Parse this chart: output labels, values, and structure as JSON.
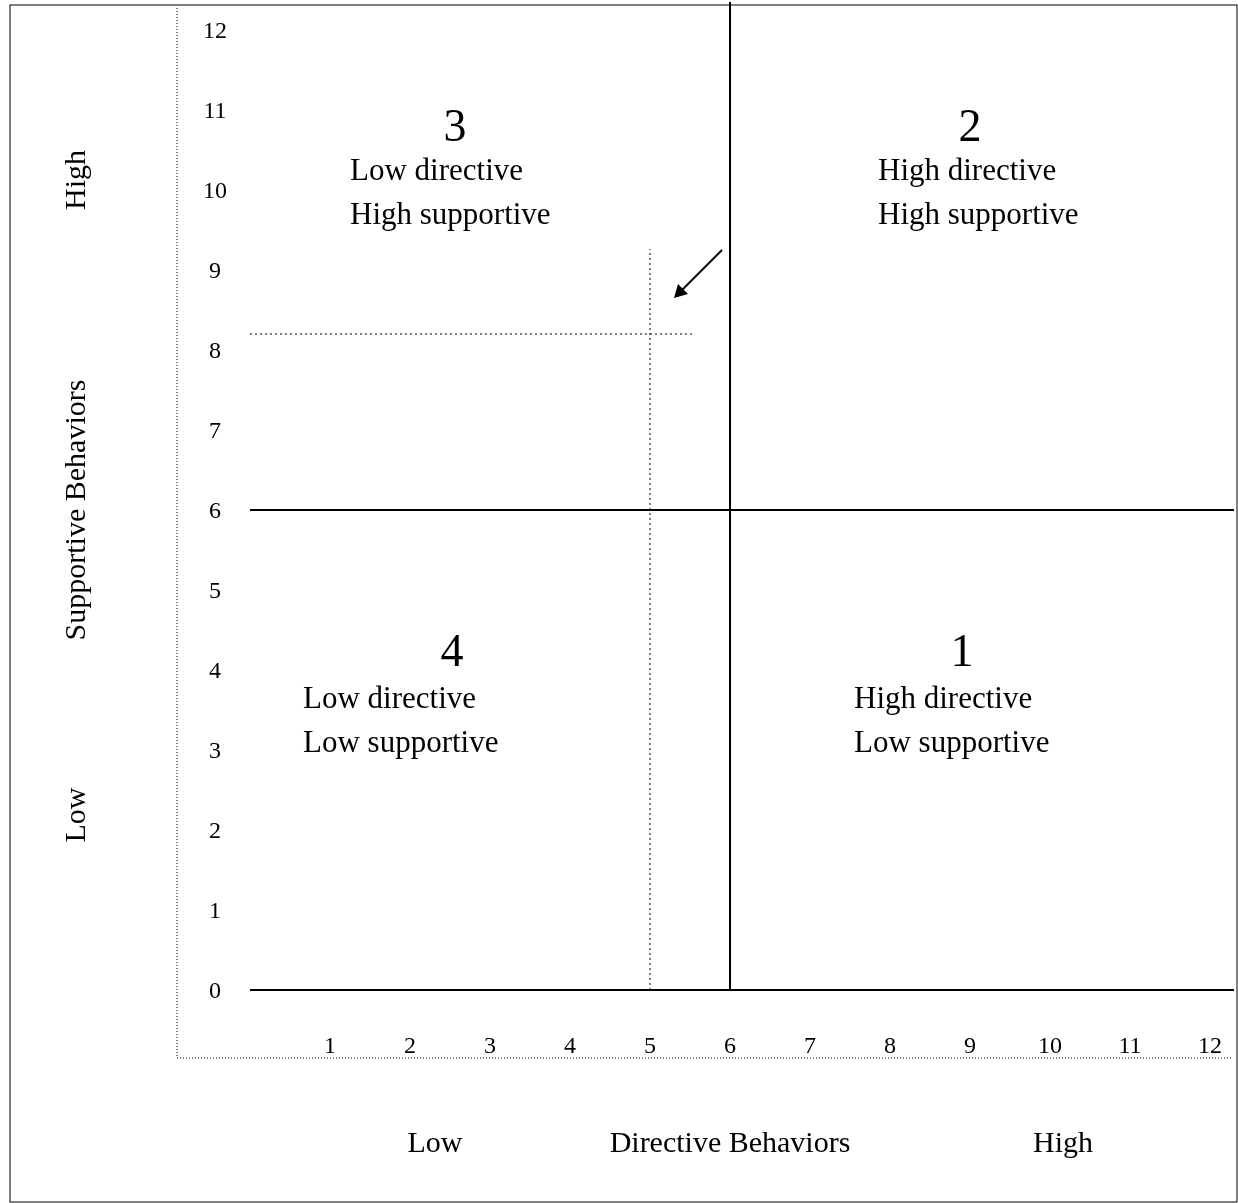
{
  "chart_data": {
    "type": "scatter",
    "xlabel": "Directive Behaviors",
    "ylabel": "Supportive Behaviors",
    "xlim": [
      0,
      12.3
    ],
    "ylim": [
      0,
      12.35
    ],
    "xticks": [
      1,
      2,
      3,
      4,
      5,
      6,
      7,
      8,
      9,
      10,
      11,
      12
    ],
    "yticks": [
      0,
      1,
      2,
      3,
      4,
      5,
      6,
      7,
      8,
      9,
      10,
      11,
      12
    ],
    "grid": false,
    "ref_lines": [
      {
        "axis": "x",
        "value": 6,
        "line_style": "solid"
      },
      {
        "axis": "y",
        "value": 6,
        "line_style": "solid"
      },
      {
        "axis": "x",
        "value": 5,
        "line_style": "dotted"
      },
      {
        "axis": "y",
        "value": 8.2,
        "line_style": "dotted"
      }
    ],
    "annotations": [
      "3",
      "Low directive\nHigh supportive",
      "2",
      "High directive\nHigh supportive",
      "4",
      "Low directive\nLow supportive",
      "1",
      "High directive\nLow supportive",
      "Low",
      "High",
      "High",
      "Low"
    ]
  }
}
